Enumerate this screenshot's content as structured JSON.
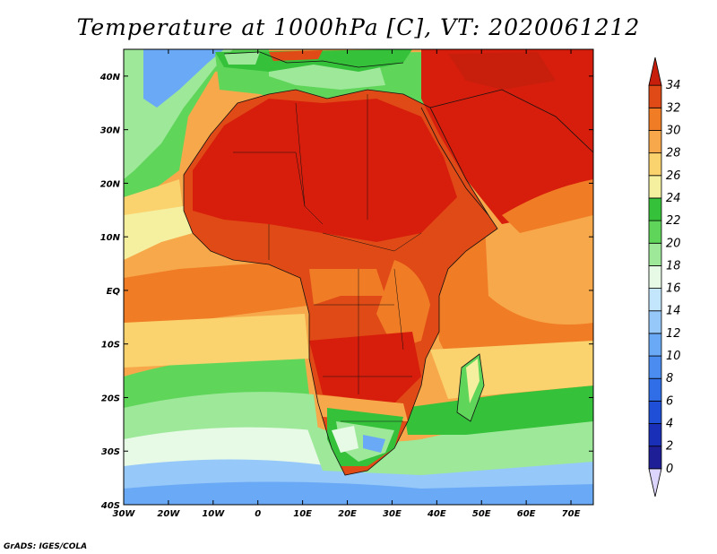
{
  "title": "Temperature at 1000hPa [C], VT: 2020061212",
  "credit": "GrADS: IGES/COLA",
  "map": {
    "lon_range": [
      -30,
      75
    ],
    "lat_range": [
      -40,
      45
    ],
    "lon_ticks": [
      "30W",
      "20W",
      "10W",
      "0",
      "10E",
      "20E",
      "30E",
      "40E",
      "50E",
      "60E",
      "70E"
    ],
    "lat_ticks": [
      "40S",
      "30S",
      "20S",
      "10S",
      "EQ",
      "10N",
      "20N",
      "30N",
      "40N"
    ]
  },
  "colorbar": {
    "levels": [
      "0",
      "2",
      "4",
      "6",
      "8",
      "10",
      "12",
      "14",
      "16",
      "18",
      "20",
      "22",
      "24",
      "26",
      "28",
      "30",
      "32",
      "34"
    ],
    "colors": [
      "#dcd6ff",
      "#1e1e96",
      "#1a2fb8",
      "#1f4fd6",
      "#2f6ee6",
      "#4a8cf0",
      "#6aa9f5",
      "#96c8fa",
      "#c3e6fc",
      "#e6fae6",
      "#9ee89a",
      "#5fd65a",
      "#35c23a",
      "#f5f0a0",
      "#fad26e",
      "#f7a84a",
      "#f07c25",
      "#e04a16",
      "#c81e0c"
    ]
  }
}
